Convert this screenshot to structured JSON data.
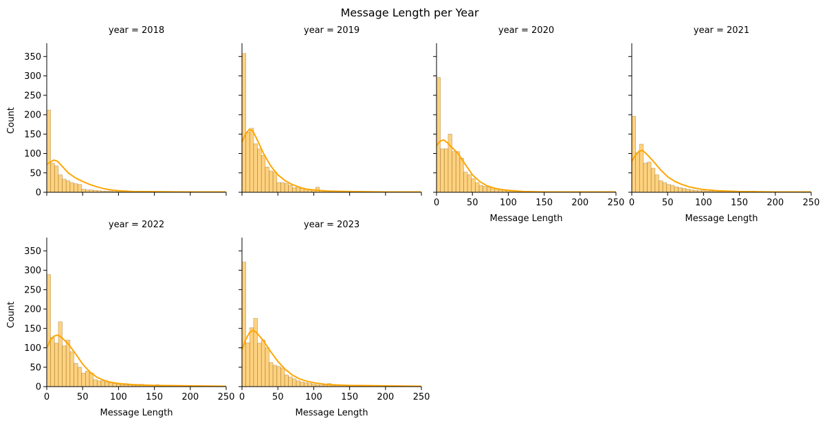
{
  "chart_data": {
    "type": "bar",
    "title": "Message Length per Year",
    "xlabel": "Message Length",
    "ylabel": "Count",
    "xlim": [
      0,
      250
    ],
    "ylim": [
      0,
      370
    ],
    "x_ticks": [
      0,
      50,
      100,
      150,
      200,
      250
    ],
    "y_ticks": [
      0,
      50,
      100,
      150,
      200,
      250,
      300,
      350
    ],
    "bin_width": 5.4,
    "bar_color": "#ffa500",
    "bar_fill_opacity": 0.5,
    "kde_color": "#ffa500",
    "kde": true,
    "grid": false,
    "facet_label_prefix": "year = ",
    "panels": [
      {
        "year": "2018",
        "counts": [
          212,
          75,
          68,
          45,
          34,
          30,
          25,
          22,
          20,
          8,
          6,
          6,
          5,
          4,
          3,
          3,
          3,
          2,
          2,
          2,
          2,
          1,
          1,
          1,
          1,
          1,
          1,
          1,
          1,
          1,
          1,
          1,
          1,
          0,
          1,
          1,
          1,
          1,
          1,
          1,
          1,
          1,
          1,
          1,
          1,
          1
        ],
        "kde": [
          [
            0,
            72
          ],
          [
            5,
            78
          ],
          [
            10,
            83
          ],
          [
            15,
            80
          ],
          [
            20,
            70
          ],
          [
            30,
            50
          ],
          [
            40,
            37
          ],
          [
            50,
            28
          ],
          [
            60,
            20
          ],
          [
            70,
            14
          ],
          [
            80,
            9
          ],
          [
            90,
            6
          ],
          [
            100,
            4
          ],
          [
            120,
            2
          ],
          [
            150,
            1.5
          ],
          [
            200,
            1
          ],
          [
            250,
            1
          ]
        ]
      },
      {
        "year": "2019",
        "counts": [
          358,
          155,
          165,
          125,
          112,
          95,
          65,
          55,
          52,
          25,
          25,
          23,
          18,
          12,
          14,
          10,
          8,
          7,
          5,
          13,
          5,
          4,
          3,
          3,
          3,
          3,
          2,
          2,
          2,
          2,
          2,
          2,
          2,
          2,
          2,
          2,
          1,
          1,
          1,
          1,
          1,
          1,
          1,
          1,
          1,
          1
        ],
        "kde": [
          [
            0,
            130
          ],
          [
            5,
            150
          ],
          [
            10,
            162
          ],
          [
            15,
            158
          ],
          [
            20,
            140
          ],
          [
            30,
            100
          ],
          [
            40,
            68
          ],
          [
            50,
            45
          ],
          [
            60,
            30
          ],
          [
            70,
            20
          ],
          [
            80,
            13
          ],
          [
            90,
            8
          ],
          [
            100,
            6
          ],
          [
            120,
            3
          ],
          [
            150,
            2
          ],
          [
            200,
            1
          ],
          [
            250,
            1
          ]
        ]
      },
      {
        "year": "2020",
        "counts": [
          296,
          112,
          112,
          150,
          105,
          105,
          88,
          52,
          45,
          35,
          25,
          18,
          15,
          13,
          12,
          10,
          8,
          6,
          4,
          3,
          3,
          2,
          2,
          2,
          2,
          2,
          2,
          2,
          2,
          2,
          2,
          2,
          1,
          1,
          1,
          1,
          1,
          1,
          1,
          1,
          1,
          1,
          1,
          1,
          1,
          1
        ],
        "kde": [
          [
            0,
            120
          ],
          [
            5,
            132
          ],
          [
            10,
            135
          ],
          [
            15,
            128
          ],
          [
            20,
            118
          ],
          [
            30,
            100
          ],
          [
            40,
            72
          ],
          [
            50,
            45
          ],
          [
            60,
            28
          ],
          [
            70,
            17
          ],
          [
            80,
            11
          ],
          [
            90,
            7
          ],
          [
            100,
            5
          ],
          [
            120,
            2
          ],
          [
            150,
            1
          ],
          [
            200,
            1
          ],
          [
            250,
            1
          ]
        ]
      },
      {
        "year": "2021",
        "counts": [
          196,
          102,
          124,
          75,
          78,
          62,
          45,
          30,
          25,
          20,
          18,
          14,
          12,
          10,
          8,
          6,
          5,
          4,
          4,
          3,
          3,
          3,
          2,
          2,
          2,
          2,
          2,
          2,
          2,
          2,
          2,
          3,
          2,
          1,
          1,
          1,
          1,
          1,
          1,
          1,
          1,
          1,
          1,
          1,
          1,
          1
        ],
        "kde": [
          [
            0,
            80
          ],
          [
            5,
            95
          ],
          [
            10,
            106
          ],
          [
            15,
            108
          ],
          [
            20,
            100
          ],
          [
            30,
            80
          ],
          [
            40,
            58
          ],
          [
            50,
            40
          ],
          [
            60,
            28
          ],
          [
            70,
            20
          ],
          [
            80,
            14
          ],
          [
            90,
            10
          ],
          [
            100,
            7
          ],
          [
            120,
            4
          ],
          [
            150,
            2
          ],
          [
            200,
            1
          ],
          [
            250,
            1
          ]
        ]
      },
      {
        "year": "2022",
        "counts": [
          289,
          127,
          112,
          167,
          105,
          120,
          90,
          60,
          50,
          35,
          40,
          35,
          18,
          15,
          15,
          12,
          10,
          8,
          6,
          5,
          4,
          4,
          3,
          3,
          6,
          3,
          3,
          3,
          5,
          2,
          2,
          2,
          2,
          2,
          2,
          2,
          2,
          2,
          2,
          2,
          2,
          2,
          2,
          2,
          2,
          2
        ],
        "kde": [
          [
            0,
            100
          ],
          [
            5,
            120
          ],
          [
            10,
            130
          ],
          [
            15,
            133
          ],
          [
            20,
            128
          ],
          [
            30,
            110
          ],
          [
            40,
            85
          ],
          [
            50,
            58
          ],
          [
            60,
            38
          ],
          [
            70,
            24
          ],
          [
            80,
            16
          ],
          [
            90,
            11
          ],
          [
            100,
            8
          ],
          [
            120,
            5
          ],
          [
            150,
            3
          ],
          [
            200,
            2
          ],
          [
            250,
            1
          ]
        ]
      },
      {
        "year": "2023",
        "counts": [
          321,
          113,
          152,
          176,
          112,
          120,
          100,
          62,
          55,
          52,
          48,
          30,
          25,
          20,
          15,
          12,
          10,
          8,
          6,
          5,
          4,
          4,
          8,
          3,
          3,
          3,
          3,
          2,
          2,
          2,
          2,
          2,
          2,
          2,
          2,
          2,
          2,
          2,
          2,
          2,
          2,
          2,
          2,
          2,
          2,
          2
        ],
        "kde": [
          [
            0,
            95
          ],
          [
            5,
            120
          ],
          [
            10,
            138
          ],
          [
            15,
            145
          ],
          [
            20,
            140
          ],
          [
            30,
            118
          ],
          [
            40,
            90
          ],
          [
            50,
            65
          ],
          [
            60,
            45
          ],
          [
            70,
            30
          ],
          [
            80,
            20
          ],
          [
            90,
            14
          ],
          [
            100,
            10
          ],
          [
            120,
            5
          ],
          [
            150,
            3
          ],
          [
            200,
            2
          ],
          [
            250,
            1
          ]
        ]
      }
    ]
  }
}
